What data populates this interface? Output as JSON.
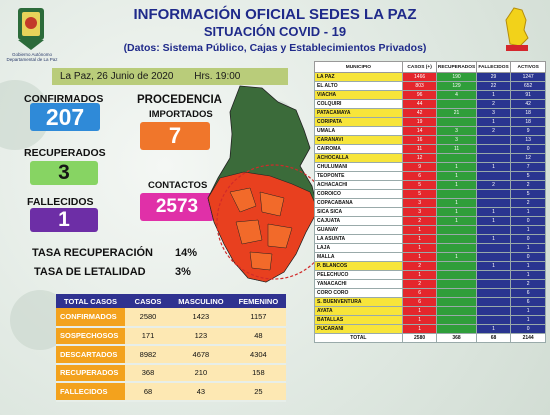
{
  "header": {
    "title": "INFORMACIÓN OFICIAL SEDES LA PAZ",
    "subtitle": "SITUACIÓN  COVID - 19",
    "source": "(Datos: Sistema Público, Cajas y Establecimientos Privados)",
    "emblem_caption": "Gobierno Autónomo Departamental de La Paz"
  },
  "date_bar": {
    "date": "La Paz, 26  Junio de 2020",
    "time": "Hrs. 19:00"
  },
  "stats": {
    "confirmados_label": "CONFIRMADOS",
    "confirmados": "207",
    "recuperados_label": "RECUPERADOS",
    "recuperados": "3",
    "fallecidos_label": "FALLECIDOS",
    "fallecidos": "1",
    "procedencia_label": "PROCEDENCIA",
    "importados_label": "IMPORTADOS",
    "importados": "7",
    "contactos_label": "CONTACTOS",
    "contactos": "2573"
  },
  "rates": {
    "recuperacion_label": "TASA RECUPERACIÓN",
    "recuperacion": "14%",
    "letalidad_label": "TASA  DE LETALIDAD",
    "letalidad": "3%"
  },
  "summary_table": {
    "headers": [
      "TOTAL CASOS",
      "CASOS",
      "MASCULINO",
      "FEMENINO"
    ],
    "rows": [
      [
        "CONFIRMADOS",
        "2580",
        "1423",
        "1157"
      ],
      [
        "SOSPECHOSOS",
        "171",
        "123",
        "48"
      ],
      [
        "DESCARTADOS",
        "8982",
        "4678",
        "4304"
      ],
      [
        "RECUPERADOS",
        "368",
        "210",
        "158"
      ],
      [
        "FALLECIDOS",
        "68",
        "43",
        "25"
      ]
    ]
  },
  "muni_table": {
    "headers": [
      "MUNICIPIO",
      "CASOS (+)",
      "RECUPERADOS",
      "FALLECIDOS",
      "ACTIVOS"
    ],
    "rows": [
      [
        "LA PAZ",
        "1466",
        "190",
        "29",
        "1247",
        true
      ],
      [
        "EL ALTO",
        "803",
        "129",
        "22",
        "652",
        false
      ],
      [
        "VIACHA",
        "96",
        "4",
        "1",
        "91",
        true
      ],
      [
        "COLQUIRI",
        "44",
        "",
        "2",
        "42",
        false
      ],
      [
        "PATACAMAYA",
        "42",
        "21",
        "3",
        "18",
        true
      ],
      [
        "CORIPATA",
        "19",
        "",
        "1",
        "18",
        true
      ],
      [
        "UMALA",
        "14",
        "3",
        "2",
        "9",
        false
      ],
      [
        "CARANAVI",
        "16",
        "3",
        "",
        "13",
        true
      ],
      [
        "CAIROMA",
        "11",
        "11",
        "",
        "0",
        false
      ],
      [
        "ACHOCALLA",
        "12",
        "",
        "",
        "12",
        true
      ],
      [
        "CHULUMANI",
        "9",
        "1",
        "1",
        "7",
        false
      ],
      [
        "TEOPONTE",
        "6",
        "1",
        "",
        "5",
        false
      ],
      [
        "ACHACACHI",
        "5",
        "1",
        "2",
        "2",
        false
      ],
      [
        "COROICO",
        "5",
        "",
        "",
        "5",
        false
      ],
      [
        "COPACABANA",
        "3",
        "1",
        "",
        "2",
        false
      ],
      [
        "SICA SICA",
        "3",
        "1",
        "1",
        "1",
        false
      ],
      [
        "CAJUATA",
        "2",
        "1",
        "1",
        "0",
        false
      ],
      [
        "GUANAY",
        "1",
        "",
        "",
        "1",
        false
      ],
      [
        "LA ASUNTA",
        "1",
        "",
        "1",
        "0",
        false
      ],
      [
        "LAJA",
        "1",
        "",
        "",
        "1",
        false
      ],
      [
        "MALLA",
        "1",
        "1",
        "",
        "0",
        false
      ],
      [
        "P. BLANCOS",
        "2",
        "",
        "1",
        "1",
        true
      ],
      [
        "PELECHUCO",
        "1",
        "",
        "",
        "1",
        false
      ],
      [
        "YANACACHI",
        "2",
        "",
        "",
        "2",
        false
      ],
      [
        "CORO CORO",
        "6",
        "",
        "",
        "6",
        false
      ],
      [
        "S. BUENVENTURA",
        "6",
        "",
        "",
        "6",
        true
      ],
      [
        "AYATA",
        "1",
        "",
        "",
        "1",
        true
      ],
      [
        "BATALLAS",
        "1",
        "",
        "",
        "1",
        true
      ],
      [
        "PUCARANI",
        "1",
        "",
        "1",
        "0",
        true
      ]
    ],
    "total": [
      "TOTAL",
      "2580",
      "368",
      "68",
      "2144"
    ]
  },
  "colors": {
    "title": "#1f2a8a",
    "confirmados": "#2f8ad8",
    "recuperados": "#87d463",
    "fallecidos": "#6d2ea6",
    "importados": "#f0762b",
    "contactos": "#e030a8",
    "table_header": "#2f3290",
    "table_cat": "#f3a21d"
  }
}
